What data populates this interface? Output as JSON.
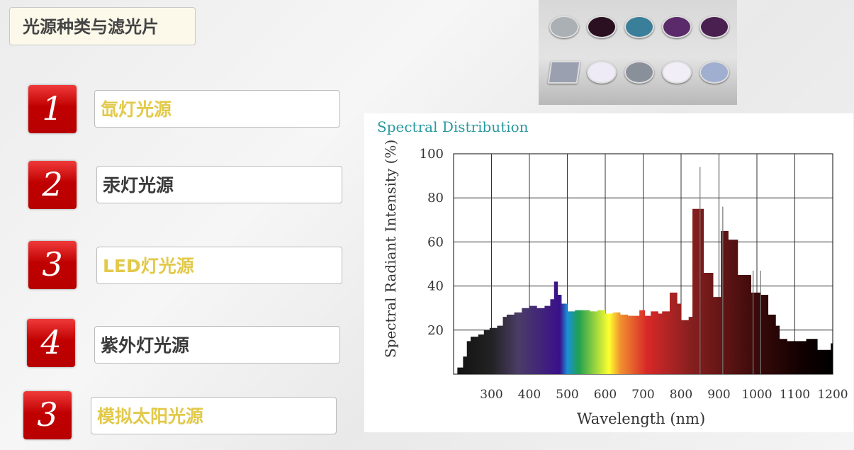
{
  "title": "光源种类与滤光片",
  "items": [
    {
      "number": "1",
      "label": "氙灯光源",
      "color": "#e2c94a"
    },
    {
      "number": "2",
      "label": "汞灯光源",
      "color": "#3a3a3a"
    },
    {
      "number": "3",
      "label": "LED灯光源",
      "color": "#e2c94a"
    },
    {
      "number": "4",
      "label": "紫外灯光源",
      "color": "#3a3a3a"
    },
    {
      "number": "3",
      "label": "模拟太阳光源",
      "color": "#e2c94a"
    }
  ],
  "filters": {
    "row1": [
      "#aab0b4",
      "#2a1020",
      "#3a7f9a",
      "#5a2a6a",
      "#4a2050"
    ],
    "row2": [
      "#9aa0b0",
      "#eeeaf6",
      "#8a9099",
      "#f2eef8",
      "#a0aed0"
    ]
  },
  "chart_data": {
    "type": "area",
    "title": "Spectral Distribution",
    "xlabel": "Wavelength (nm)",
    "ylabel": "Spectral Radiant Intensity (%)",
    "xlim": [
      200,
      1200
    ],
    "ylim": [
      0,
      100
    ],
    "xticks": [
      "300",
      "400",
      "500",
      "600",
      "700",
      "800",
      "900",
      "1000",
      "1100",
      "1200"
    ],
    "yticks": [
      "20",
      "40",
      "60",
      "80",
      "100"
    ],
    "grid": true,
    "x": [
      200,
      210,
      225,
      235,
      245,
      265,
      280,
      295,
      315,
      330,
      340,
      360,
      380,
      400,
      420,
      440,
      455,
      465,
      475,
      485,
      500,
      520,
      560,
      580,
      600,
      620,
      640,
      660,
      690,
      705,
      720,
      740,
      750,
      770,
      790,
      800,
      820,
      830,
      860,
      885,
      905,
      925,
      950,
      985,
      1010,
      1030,
      1050,
      1060,
      1080,
      1100,
      1130,
      1160,
      1195,
      1200
    ],
    "y": [
      0,
      3,
      8,
      15,
      17,
      18,
      20,
      21,
      22,
      26,
      27,
      28,
      30,
      31,
      30,
      31,
      34,
      42,
      36,
      32,
      28.5,
      29,
      28.5,
      29,
      27.5,
      28,
      27,
      26.5,
      29,
      26.5,
      28.5,
      27.5,
      28.5,
      37,
      32,
      24.5,
      26,
      75,
      46,
      35,
      65,
      61,
      45,
      37,
      36,
      27,
      22,
      16,
      15,
      15,
      16,
      11,
      14,
      14
    ],
    "spikes": [
      {
        "x": 850,
        "y": 94
      },
      {
        "x": 910,
        "y": 76
      },
      {
        "x": 990,
        "y": 47
      },
      {
        "x": 1010,
        "y": 47
      }
    ]
  }
}
